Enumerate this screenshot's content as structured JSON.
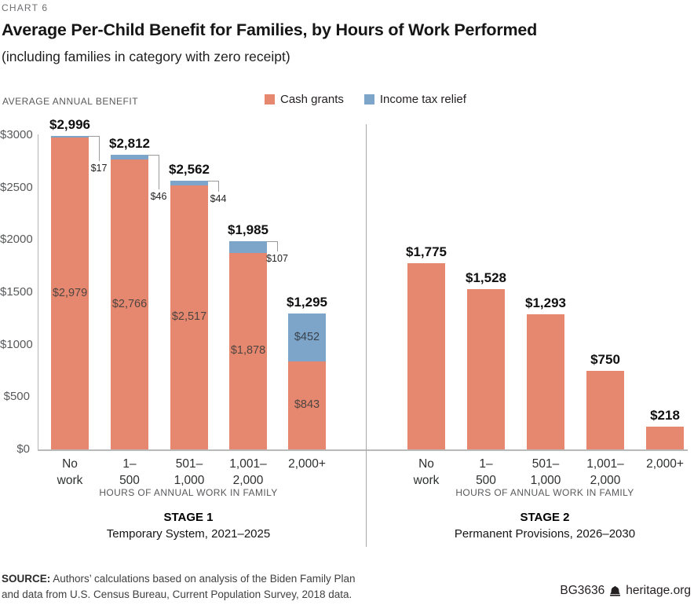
{
  "header": {
    "eyebrow": "CHART 6",
    "title": "Average Per-Child Benefit for Families, by Hours of Work Performed",
    "subtitle": "(including families in category with zero receipt)"
  },
  "axis": {
    "unit_label": "AVERAGE ANNUAL BENEFIT",
    "x_label": "HOURS OF ANNUAL WORK IN FAMILY"
  },
  "legend": [
    {
      "label": "Cash grants",
      "color": "#e6876f"
    },
    {
      "label": "Income tax relief",
      "color": "#7ca5c9"
    }
  ],
  "chart_data": {
    "type": "bar",
    "stacked": true,
    "grid": false,
    "legend_position": "top",
    "ylim": [
      0,
      3000
    ],
    "yticks": [
      {
        "value": 3000,
        "label": "$3000"
      },
      {
        "value": 2500,
        "label": "$2500"
      },
      {
        "value": 2000,
        "label": "$2000"
      },
      {
        "value": 1500,
        "label": "$1500"
      },
      {
        "value": 1000,
        "label": "$1000"
      },
      {
        "value": 500,
        "label": "$500"
      },
      {
        "value": 0,
        "label": "$0"
      }
    ],
    "categories": [
      "No\nwork",
      "1–\n500",
      "501–\n1,000",
      "1,001–\n2,000",
      "2,000+"
    ],
    "series_names": [
      "Cash grants",
      "Income tax relief"
    ],
    "panels": [
      {
        "stage_title": "STAGE 1",
        "stage_subtitle": "Temporary System, 2021–2025",
        "bars": [
          {
            "total": 2996,
            "total_label": "$2,996",
            "cash": 2979,
            "cash_label": "$2,979",
            "tax": 17,
            "tax_label": "$17",
            "tax_label_placement": "callout"
          },
          {
            "total": 2812,
            "total_label": "$2,812",
            "cash": 2766,
            "cash_label": "$2,766",
            "tax": 46,
            "tax_label": "$46",
            "tax_label_placement": "callout"
          },
          {
            "total": 2562,
            "total_label": "$2,562",
            "cash": 2517,
            "cash_label": "$2,517",
            "tax": 44,
            "tax_label": "$44",
            "tax_label_placement": "callout"
          },
          {
            "total": 1985,
            "total_label": "$1,985",
            "cash": 1878,
            "cash_label": "$1,878",
            "tax": 107,
            "tax_label": "$107",
            "tax_label_placement": "callout"
          },
          {
            "total": 1295,
            "total_label": "$1,295",
            "cash": 843,
            "cash_label": "$843",
            "tax": 452,
            "tax_label": "$452",
            "tax_label_placement": "inside"
          }
        ]
      },
      {
        "stage_title": "STAGE 2",
        "stage_subtitle": "Permanent Provisions, 2026–2030",
        "bars": [
          {
            "total": 1775,
            "total_label": "$1,775",
            "cash": 1775,
            "tax": 0
          },
          {
            "total": 1528,
            "total_label": "$1,528",
            "cash": 1528,
            "tax": 0
          },
          {
            "total": 1293,
            "total_label": "$1,293",
            "cash": 1293,
            "tax": 0
          },
          {
            "total": 750,
            "total_label": "$750",
            "cash": 750,
            "tax": 0
          },
          {
            "total": 218,
            "total_label": "$218",
            "cash": 218,
            "tax": 0
          }
        ]
      }
    ]
  },
  "footer": {
    "source_label": "SOURCE:",
    "source_line1": "Authors’ calculations based on analysis of the Biden Family Plan",
    "source_line2": "and data from U.S. Census Bureau, Current Population Survey, 2018 data.",
    "doc_id": "BG3636",
    "site": "heritage.org",
    "bell_icon": "liberty-bell"
  }
}
